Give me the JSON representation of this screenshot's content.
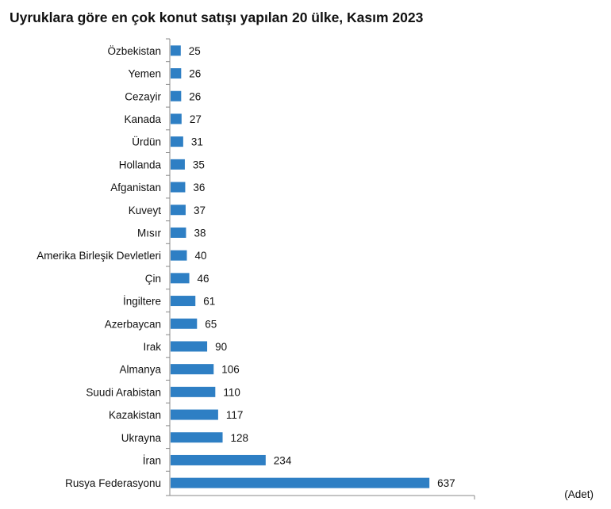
{
  "chart_data": {
    "type": "bar",
    "orientation": "horizontal",
    "title": "Uyruklara göre en çok konut satışı yapılan 20 ülke, Kasım 2023",
    "unit_label": "(Adet)",
    "categories": [
      "Özbekistan",
      "Yemen",
      "Cezayir",
      "Kanada",
      "Ürdün",
      "Hollanda",
      "Afganistan",
      "Kuveyt",
      "Mısır",
      "Amerika Birleşik Devletleri",
      "Çin",
      "İngiltere",
      "Azerbaycan",
      "Irak",
      "Almanya",
      "Suudi Arabistan",
      "Kazakistan",
      "Ukrayna",
      "İran",
      "Rusya Federasyonu"
    ],
    "values": [
      25,
      26,
      26,
      27,
      31,
      35,
      36,
      37,
      38,
      40,
      46,
      61,
      65,
      90,
      106,
      110,
      117,
      128,
      234,
      637
    ],
    "xlim": [
      0,
      750
    ],
    "grid": false,
    "data_labels": true,
    "colors": {
      "bar": "#2e7fc4"
    }
  }
}
